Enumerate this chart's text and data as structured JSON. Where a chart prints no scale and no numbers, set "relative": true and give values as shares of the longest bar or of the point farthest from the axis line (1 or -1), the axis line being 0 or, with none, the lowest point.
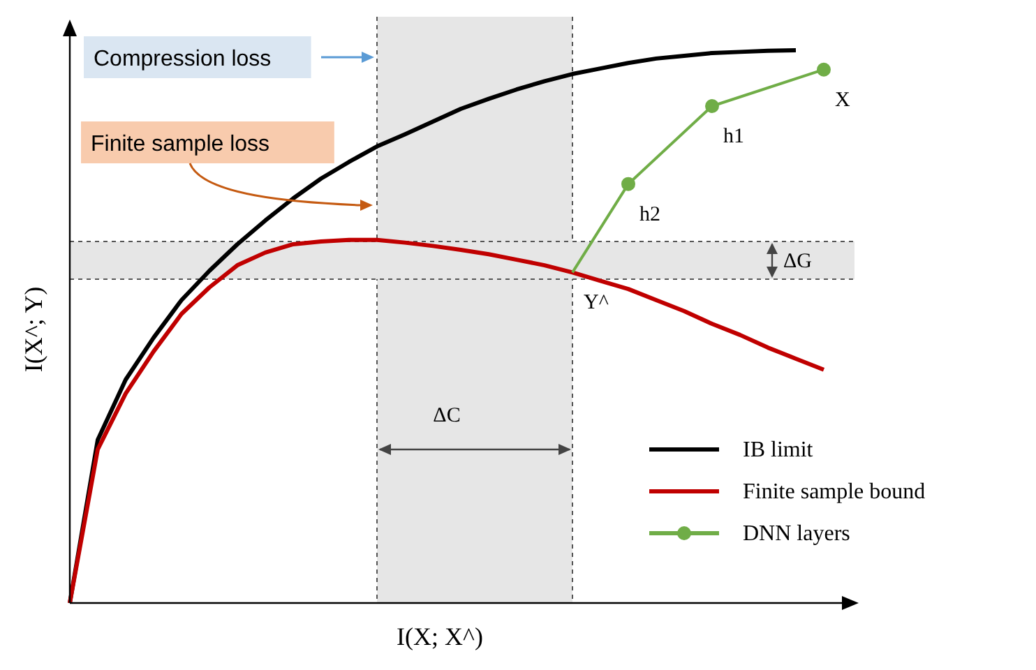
{
  "chart_data": {
    "type": "line",
    "relative": true,
    "xlabel": "I(X; X^)",
    "ylabel": "I(X^; Y)",
    "legend": "bottom right",
    "categories": [
      null,
      null,
      null,
      null,
      null,
      null,
      null,
      null,
      null,
      null,
      null,
      null,
      null,
      null,
      null,
      null,
      null,
      null,
      null,
      null,
      null,
      null,
      null,
      null,
      null,
      null,
      null,
      null,
      null
    ],
    "series": [
      {
        "name": "IB limit",
        "color": "#000000",
        "values": [
          0,
          0.295,
          0.404,
          0.48,
          0.548,
          0.601,
          0.649,
          0.692,
          0.732,
          0.768,
          0.798,
          0.826,
          0.848,
          0.871,
          0.894,
          0.912,
          0.929,
          0.944,
          0.957,
          0.967,
          0.977,
          0.985,
          0.99,
          0.995,
          0.997,
          0.999,
          1,
          null,
          null
        ]
      },
      {
        "name": "Finite sample bound",
        "color": "#c00000",
        "values": [
          0,
          0.278,
          0.379,
          0.455,
          0.523,
          0.571,
          0.611,
          0.634,
          0.649,
          0.654,
          0.657,
          0.657,
          0.652,
          0.646,
          0.639,
          0.631,
          0.621,
          0.611,
          0.598,
          0.583,
          0.568,
          0.548,
          0.528,
          0.505,
          0.485,
          0.462,
          0.442,
          0.422,
          null
        ]
      },
      {
        "name": "DNN layers",
        "color": "#70ad47",
        "marker": "circle",
        "values": [
          null,
          null,
          null,
          null,
          null,
          null,
          null,
          null,
          null,
          null,
          null,
          null,
          null,
          null,
          null,
          null,
          null,
          null,
          0.598,
          null,
          0.758,
          null,
          null,
          0.899,
          null,
          null,
          null,
          0.965,
          null
        ]
      }
    ],
    "bands": [
      {
        "axis": "y",
        "from": 0.586,
        "to": 0.654,
        "label": "ΔG",
        "color": "#e6e6e6"
      }
    ],
    "annotations": [
      "Compression loss",
      "Finite sample loss",
      "ΔC",
      "Y^",
      "h2",
      "h1",
      "X"
    ]
  }
}
